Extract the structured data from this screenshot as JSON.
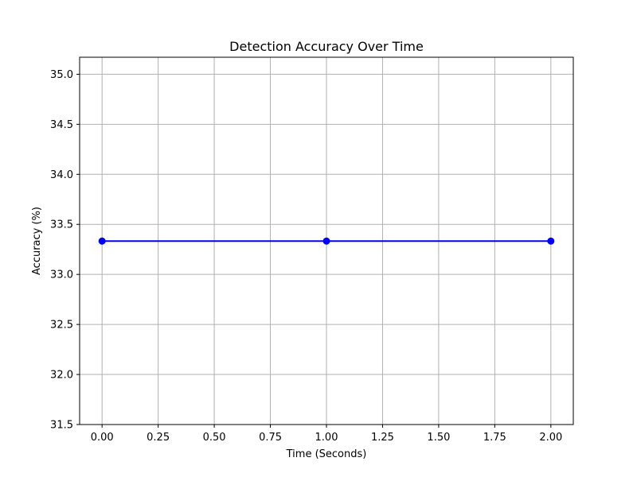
{
  "chart_data": {
    "type": "line",
    "title": "Detection Accuracy Over Time",
    "xlabel": "Time (Seconds)",
    "ylabel": "Accuracy (%)",
    "x": [
      0,
      1,
      2
    ],
    "series": [
      {
        "values": [
          33.333,
          33.333,
          33.333
        ],
        "color": "#0000ff",
        "marker": "circle"
      }
    ],
    "xlim": [
      -0.1,
      2.1
    ],
    "ylim": [
      31.5,
      35.17
    ],
    "xticks": [
      0,
      0.25,
      0.5,
      0.75,
      1,
      1.25,
      1.5,
      1.75,
      2
    ],
    "xtick_labels": [
      "0.00",
      "0.25",
      "0.50",
      "0.75",
      "1.00",
      "1.25",
      "1.50",
      "1.75",
      "2.00"
    ],
    "yticks": [
      31.5,
      32,
      32.5,
      33,
      33.5,
      34,
      34.5,
      35
    ],
    "ytick_labels": [
      "31.5",
      "32.0",
      "32.5",
      "33.0",
      "33.5",
      "34.0",
      "34.5",
      "35.0"
    ],
    "grid": true,
    "grid_color": "#b0b0b0"
  }
}
